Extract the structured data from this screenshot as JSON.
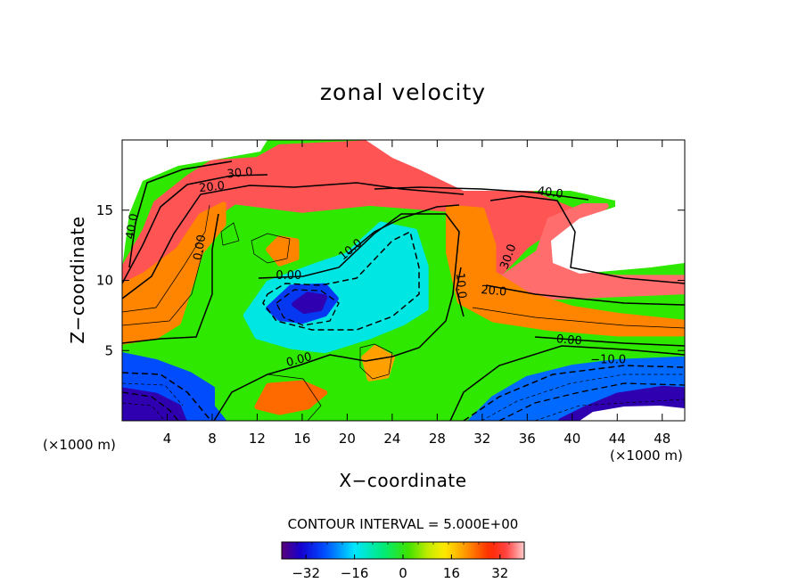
{
  "chart_data": {
    "type": "contour",
    "title": "zonal velocity",
    "xlabel": "X−coordinate",
    "ylabel": "Z−coordinate",
    "x_unit_left": "(×1000 m)",
    "x_unit_right": "(×1000 m)",
    "xlim": [
      0,
      50
    ],
    "ylim": [
      0,
      20
    ],
    "x_ticks": [
      4,
      8,
      12,
      16,
      20,
      24,
      28,
      32,
      36,
      40,
      44,
      48
    ],
    "y_ticks": [
      5,
      10,
      15
    ],
    "contour_interval_text": "CONTOUR INTERVAL = 5.000E+00",
    "colorbar": {
      "min": -40,
      "max": 40,
      "ticks": [
        -32,
        -16,
        0,
        16,
        32
      ],
      "tick_labels": [
        "−32",
        "−16",
        "0",
        "16",
        "32"
      ]
    },
    "contour_labels": [
      {
        "text": "30.0",
        "x": 10.5,
        "y": 17.4,
        "rot": -6
      },
      {
        "text": "20.0",
        "x": 8.0,
        "y": 16.4,
        "rot": -6
      },
      {
        "text": "40.0",
        "x": 1.2,
        "y": 13.8,
        "rot": -80
      },
      {
        "text": "40.0",
        "x": 38.0,
        "y": 16.0,
        "rot": 8
      },
      {
        "text": "0.00",
        "x": 7.2,
        "y": 12.3,
        "rot": -80
      },
      {
        "text": "0.00",
        "x": 14.8,
        "y": 10.1,
        "rot": 0
      },
      {
        "text": "10.0",
        "x": 20.5,
        "y": 12.0,
        "rot": -40
      },
      {
        "text": "10.0",
        "x": 29.8,
        "y": 9.6,
        "rot": 85
      },
      {
        "text": "30.0",
        "x": 34.6,
        "y": 11.6,
        "rot": -70
      },
      {
        "text": "20.0",
        "x": 33.0,
        "y": 9.0,
        "rot": 5
      },
      {
        "text": "0.00",
        "x": 39.7,
        "y": 5.5,
        "rot": 5
      },
      {
        "text": "−10.0",
        "x": 43.2,
        "y": 4.1,
        "rot": 0
      },
      {
        "text": "0.00",
        "x": 15.8,
        "y": 4.1,
        "rot": -15
      }
    ],
    "regions": [
      {
        "name": "top-jet",
        "value": 35,
        "pts": [
          [
            6,
            17.4
          ],
          [
            8,
            18.4
          ],
          [
            12,
            18.6
          ],
          [
            14,
            19.5
          ],
          [
            22,
            19.8
          ],
          [
            26,
            19.8
          ],
          [
            27,
            17.7
          ],
          [
            30,
            17.5
          ],
          [
            34,
            17.0
          ],
          [
            37,
            16.0
          ],
          [
            40,
            15.0
          ],
          [
            43,
            15.3
          ],
          [
            42,
            14.6
          ],
          [
            38,
            13.6
          ],
          [
            36,
            12.5
          ],
          [
            33,
            10.0
          ],
          [
            30,
            10.0
          ],
          [
            30,
            15.0
          ],
          [
            22,
            15.5
          ],
          [
            16,
            15.0
          ],
          [
            10,
            15.6
          ],
          [
            8,
            14.5
          ],
          [
            6,
            12
          ],
          [
            2,
            10
          ],
          [
            0,
            9.5
          ],
          [
            0,
            10.7
          ],
          [
            2,
            13.5
          ],
          [
            3,
            15.5
          ]
        ]
      },
      {
        "name": "right-upper-jet",
        "value": 36,
        "pts": [
          [
            30,
            10.0
          ],
          [
            34,
            10.3
          ],
          [
            37,
            12
          ],
          [
            38,
            14.3
          ],
          [
            41,
            15.3
          ],
          [
            43,
            15.3
          ],
          [
            39,
            13.0
          ],
          [
            38,
            11.5
          ],
          [
            40,
            10.5
          ],
          [
            44,
            10.2
          ],
          [
            50,
            10.2
          ],
          [
            50,
            9.2
          ],
          [
            44,
            9.0
          ],
          [
            38,
            8.8
          ],
          [
            34,
            8.6
          ],
          [
            31,
            8.8
          ]
        ]
      },
      {
        "name": "left-warm",
        "value": 22,
        "pts": [
          [
            0,
            5.6
          ],
          [
            0,
            9.6
          ],
          [
            2,
            10.4
          ],
          [
            5,
            12.2
          ],
          [
            7,
            14.6
          ],
          [
            9,
            15.4
          ],
          [
            9,
            14.0
          ],
          [
            7,
            12.0
          ],
          [
            6,
            9.5
          ],
          [
            5,
            7.0
          ],
          [
            3,
            6.0
          ]
        ]
      },
      {
        "name": "right-warm",
        "value": 22,
        "pts": [
          [
            29,
            15.2
          ],
          [
            32,
            15.0
          ],
          [
            33,
            12.5
          ],
          [
            33,
            10.5
          ],
          [
            36,
            9.0
          ],
          [
            40,
            8.0
          ],
          [
            44,
            7.5
          ],
          [
            50,
            7.0
          ],
          [
            50,
            6.2
          ],
          [
            44,
            6.2
          ],
          [
            38,
            6.6
          ],
          [
            33,
            7.2
          ],
          [
            30,
            8.5
          ],
          [
            29,
            12
          ]
        ]
      },
      {
        "name": "bottom-left-cold",
        "value": -26,
        "pts": [
          [
            0,
            0
          ],
          [
            0,
            4.7
          ],
          [
            3,
            4.2
          ],
          [
            6,
            3.3
          ],
          [
            8,
            2.3
          ],
          [
            8,
            1.0
          ],
          [
            9,
            0
          ]
        ]
      },
      {
        "name": "bottom-left-deep",
        "value": -36,
        "pts": [
          [
            0,
            0
          ],
          [
            0,
            2.2
          ],
          [
            3,
            1.8
          ],
          [
            5,
            1.0
          ],
          [
            5.5,
            0
          ]
        ]
      },
      {
        "name": "bottom-right-cold",
        "value": -24,
        "pts": [
          [
            31,
            0
          ],
          [
            33,
            1.6
          ],
          [
            36,
            3.0
          ],
          [
            40,
            3.8
          ],
          [
            44,
            4.2
          ],
          [
            50,
            4.4
          ],
          [
            50,
            0
          ]
        ]
      },
      {
        "name": "bottom-right-deep",
        "value": -36,
        "pts": [
          [
            39,
            0
          ],
          [
            41,
            0.8
          ],
          [
            44,
            1.8
          ],
          [
            48,
            2.3
          ],
          [
            50,
            2.2
          ],
          [
            50,
            0
          ]
        ]
      },
      {
        "name": "blue-vortex",
        "value": -14,
        "pts": [
          [
            11,
            7.5
          ],
          [
            13,
            9.8
          ],
          [
            17,
            11.0
          ],
          [
            20,
            11.8
          ],
          [
            23,
            14.0
          ],
          [
            26,
            13.5
          ],
          [
            27,
            11.0
          ],
          [
            27,
            8.0
          ],
          [
            25,
            7.0
          ],
          [
            22,
            6.0
          ],
          [
            18,
            5.0
          ],
          [
            15,
            5.3
          ],
          [
            12,
            6.0
          ]
        ]
      },
      {
        "name": "vortex-core",
        "value": -28,
        "pts": [
          [
            13,
            8.0
          ],
          [
            15,
            9.5
          ],
          [
            18,
            9.6
          ],
          [
            19,
            8.7
          ],
          [
            18,
            7.6
          ],
          [
            16,
            7.1
          ],
          [
            14,
            7.3
          ]
        ]
      },
      {
        "name": "vortex-center",
        "value": -36,
        "pts": [
          [
            15.3,
            8.3
          ],
          [
            16.5,
            9.0
          ],
          [
            18,
            8.8
          ],
          [
            17.6,
            8.0
          ],
          [
            16.2,
            7.8
          ]
        ]
      },
      {
        "name": "warm-blob-a",
        "value": 24,
        "pts": [
          [
            12,
            1.0
          ],
          [
            13,
            2.5
          ],
          [
            16,
            2.7
          ],
          [
            18,
            2.0
          ],
          [
            16.5,
            1.0
          ],
          [
            14,
            0.6
          ]
        ]
      },
      {
        "name": "warm-blob-b",
        "value": 20,
        "pts": [
          [
            21.5,
            4.5
          ],
          [
            22.5,
            5.2
          ],
          [
            24,
            4.5
          ],
          [
            23.5,
            3.2
          ],
          [
            22,
            3.0
          ]
        ]
      },
      {
        "name": "warm-blob-c",
        "value": 22,
        "pts": [
          [
            13,
            12.2
          ],
          [
            14,
            13.0
          ],
          [
            15.5,
            12.8
          ],
          [
            15.5,
            11.6
          ],
          [
            14,
            11.2
          ]
        ]
      }
    ]
  }
}
